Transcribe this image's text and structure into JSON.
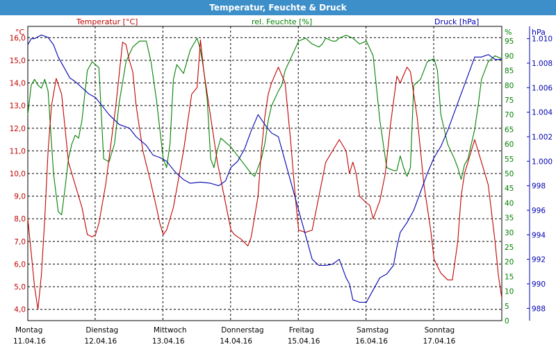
{
  "window": {
    "title": "Temperatur, Feuchte & Druck"
  },
  "colors": {
    "title_bg": "#3d8fc9",
    "temperature": "#c00000",
    "humidity": "#008000",
    "pressure": "#0000b0",
    "grid": "#000000",
    "axis_text": "#000000"
  },
  "chart_data": {
    "type": "line",
    "title": "Temperatur, Feuchte & Druck",
    "grid": true,
    "x_range": [
      0,
      7
    ],
    "x_ticks": [
      {
        "day": "Montag",
        "date": "11.04.16"
      },
      {
        "day": "Dienstag",
        "date": "12.04.16"
      },
      {
        "day": "Mittwoch",
        "date": "13.04.16"
      },
      {
        "day": "Donnerstag",
        "date": "14.04.16"
      },
      {
        "day": "Freitag",
        "date": "15.04.16"
      },
      {
        "day": "Samstag",
        "date": "16.04.16"
      },
      {
        "day": "Sonntag",
        "date": "17.04.16"
      }
    ],
    "axes": {
      "temperature": {
        "unit": "°C",
        "range": [
          3.5,
          16.5
        ],
        "ticks": [
          "4,0",
          "5,0",
          "6,0",
          "7,0",
          "8,0",
          "9,0",
          "10,0",
          "11,0",
          "12,0",
          "13,0",
          "14,0",
          "15,0",
          "16,0"
        ]
      },
      "humidity": {
        "unit": "%",
        "range": [
          0,
          100
        ],
        "ticks": [
          "0",
          "5",
          "10",
          "15",
          "20",
          "25",
          "30",
          "35",
          "40",
          "45",
          "50",
          "55",
          "60",
          "65",
          "70",
          "75",
          "80",
          "85",
          "90",
          "95"
        ]
      },
      "pressure": {
        "unit": "hPa",
        "range": [
          987,
          1011
        ],
        "ticks": [
          "988",
          "990",
          "992",
          "994",
          "996",
          "998",
          "1.000",
          "1.002",
          "1.004",
          "1.006",
          "1.008",
          "1.010"
        ]
      }
    },
    "series": [
      {
        "name": "Temperatur [°C]",
        "axis": "temperature",
        "x": [
          0,
          0.05,
          0.1,
          0.15,
          0.2,
          0.25,
          0.3,
          0.35,
          0.42,
          0.5,
          0.55,
          0.6,
          0.7,
          0.8,
          0.88,
          0.95,
          1.0,
          1.05,
          1.15,
          1.3,
          1.4,
          1.45,
          1.5,
          1.55,
          1.6,
          1.7,
          1.8,
          1.9,
          1.95,
          2.0,
          2.05,
          2.15,
          2.3,
          2.42,
          2.5,
          2.55,
          2.6,
          2.7,
          2.8,
          2.9,
          3.0,
          3.05,
          3.15,
          3.25,
          3.3,
          3.4,
          3.45,
          3.5,
          3.55,
          3.6,
          3.7,
          3.8,
          3.88,
          3.95,
          4.0,
          4.1,
          4.2,
          4.3,
          4.4,
          4.5,
          4.6,
          4.7,
          4.75,
          4.8,
          4.85,
          4.9,
          5.0,
          5.05,
          5.1,
          5.2,
          5.28,
          5.35,
          5.45,
          5.5,
          5.6,
          5.65,
          5.75,
          5.85,
          5.95,
          6.0,
          6.1,
          6.2,
          6.27,
          6.35,
          6.4,
          6.45,
          6.5,
          6.6,
          6.7,
          6.8,
          6.9,
          6.95,
          7.0
        ],
        "y": [
          8.0,
          6.5,
          5.0,
          4.0,
          5.5,
          8.0,
          11.0,
          13.0,
          14.2,
          13.5,
          12.0,
          10.5,
          9.5,
          8.5,
          7.3,
          7.2,
          7.3,
          7.8,
          9.5,
          13.0,
          15.8,
          15.7,
          15.0,
          14.5,
          13.0,
          11.0,
          9.8,
          8.5,
          7.8,
          7.3,
          7.5,
          8.5,
          11.0,
          13.5,
          13.8,
          15.9,
          14.5,
          12.5,
          10.5,
          9.0,
          7.5,
          7.3,
          7.1,
          6.8,
          7.2,
          9.0,
          11.0,
          12.5,
          13.5,
          14.0,
          14.7,
          14.0,
          11.5,
          9.0,
          7.5,
          7.4,
          7.5,
          9.0,
          10.5,
          11.0,
          11.5,
          11.0,
          10.0,
          10.5,
          10.0,
          9.0,
          8.7,
          8.6,
          8.0,
          8.8,
          10.0,
          12.0,
          14.3,
          14.0,
          14.7,
          14.5,
          12.5,
          9.5,
          7.5,
          6.2,
          5.6,
          5.3,
          5.3,
          7.0,
          9.0,
          10.0,
          10.5,
          11.5,
          10.5,
          9.5,
          7.0,
          5.5,
          4.5
        ]
      },
      {
        "name": "rel. Feuchte [%]",
        "axis": "humidity",
        "x": [
          0,
          0.05,
          0.1,
          0.15,
          0.2,
          0.25,
          0.3,
          0.38,
          0.45,
          0.5,
          0.55,
          0.6,
          0.65,
          0.7,
          0.75,
          0.8,
          0.88,
          0.95,
          1.05,
          1.12,
          1.2,
          1.28,
          1.35,
          1.45,
          1.55,
          1.65,
          1.75,
          1.82,
          1.9,
          2.0,
          2.05,
          2.1,
          2.15,
          2.2,
          2.3,
          2.4,
          2.5,
          2.55,
          2.6,
          2.65,
          2.7,
          2.75,
          2.8,
          2.85,
          2.95,
          3.0,
          3.1,
          3.2,
          3.3,
          3.35,
          3.45,
          3.5,
          3.55,
          3.6,
          3.7,
          3.75,
          3.8,
          3.9,
          4.0,
          4.1,
          4.2,
          4.3,
          4.35,
          4.4,
          4.5,
          4.55,
          4.6,
          4.7,
          4.8,
          4.9,
          5.0,
          5.1,
          5.2,
          5.3,
          5.4,
          5.45,
          5.5,
          5.55,
          5.6,
          5.65,
          5.7,
          5.8,
          5.85,
          5.9,
          6.0,
          6.05,
          6.1,
          6.2,
          6.3,
          6.35,
          6.4,
          6.45,
          6.5,
          6.6,
          6.65,
          6.7,
          6.8,
          6.9,
          7.0
        ],
        "y": [
          70,
          80,
          82,
          80,
          79,
          82,
          78,
          50,
          37,
          36,
          45,
          55,
          60,
          63,
          62,
          68,
          85,
          88,
          86,
          55,
          54,
          60,
          74,
          88,
          93,
          95,
          95,
          88,
          75,
          55,
          52,
          60,
          82,
          87,
          84,
          92,
          96,
          92,
          85,
          75,
          55,
          52,
          58,
          62,
          60,
          59,
          56,
          53,
          50,
          49,
          55,
          60,
          68,
          73,
          78,
          80,
          85,
          90,
          95,
          96,
          94,
          93,
          94,
          96,
          95,
          95,
          96,
          97,
          96,
          94,
          95,
          90,
          68,
          52,
          51,
          51,
          56,
          52,
          49,
          52,
          80,
          82,
          85,
          88,
          89,
          85,
          70,
          60,
          55,
          52,
          48,
          53,
          55,
          65,
          73,
          82,
          88,
          90,
          89
        ]
      },
      {
        "name": "Druck [hPa]",
        "axis": "pressure",
        "x": [
          0,
          0.05,
          0.1,
          0.2,
          0.3,
          0.38,
          0.45,
          0.55,
          0.62,
          0.7,
          0.8,
          0.9,
          1.0,
          1.1,
          1.2,
          1.35,
          1.5,
          1.6,
          1.75,
          1.85,
          1.95,
          2.05,
          2.15,
          2.2,
          2.3,
          2.4,
          2.55,
          2.7,
          2.82,
          2.92,
          3.0,
          3.1,
          3.15,
          3.2,
          3.3,
          3.4,
          3.5,
          3.6,
          3.7,
          3.8,
          3.9,
          4.0,
          4.1,
          4.2,
          4.3,
          4.4,
          4.5,
          4.6,
          4.7,
          4.75,
          4.8,
          4.9,
          5.0,
          5.1,
          5.2,
          5.3,
          5.4,
          5.45,
          5.5,
          5.6,
          5.7,
          5.8,
          5.9,
          6.0,
          6.1,
          6.2,
          6.3,
          6.4,
          6.5,
          6.6,
          6.7,
          6.8,
          6.9,
          7.0
        ],
        "y": [
          1009.5,
          1010.0,
          1010.0,
          1010.3,
          1010.1,
          1009.5,
          1008.5,
          1007.5,
          1006.8,
          1006.5,
          1006.0,
          1005.5,
          1005.2,
          1004.5,
          1003.8,
          1003.0,
          1002.7,
          1002.0,
          1001.3,
          1000.5,
          1000.3,
          1000.0,
          999.3,
          999.0,
          998.5,
          998.2,
          998.3,
          998.2,
          998.0,
          998.4,
          999.5,
          1000.0,
          1000.5,
          1001.0,
          1002.5,
          1003.8,
          1003.0,
          1002.3,
          1002.0,
          1000.0,
          998.0,
          996.0,
          994.0,
          992.0,
          991.5,
          991.5,
          991.6,
          992.0,
          990.5,
          990.0,
          988.7,
          988.5,
          988.5,
          989.5,
          990.5,
          990.8,
          991.5,
          993.0,
          994.2,
          995.0,
          996.0,
          997.5,
          999.0,
          1000.3,
          1001.2,
          1002.5,
          1004.0,
          1005.5,
          1007.0,
          1008.5,
          1008.5,
          1008.7,
          1008.3,
          1008.3
        ]
      }
    ]
  }
}
